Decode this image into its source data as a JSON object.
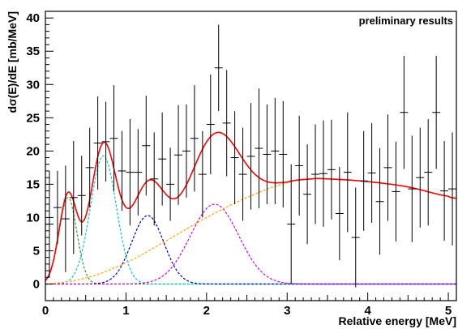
{
  "chart_data": {
    "type": "scatter",
    "title": "",
    "annotation": "preliminary results",
    "xlabel": "Relative energy [MeV]",
    "ylabel": "dσ(E)/dE [mb/MeV]",
    "xlim": [
      0,
      5.1
    ],
    "ylim": [
      -2.5,
      41
    ],
    "xticks": [
      0,
      1,
      2,
      3,
      4,
      5
    ],
    "yticks": [
      0,
      5,
      10,
      15,
      20,
      25,
      30,
      35,
      40
    ],
    "grid": false,
    "legend": "none",
    "points": [
      {
        "x": 0.05,
        "y": 9.0,
        "err": 8.0
      },
      {
        "x": 0.15,
        "y": 11.5,
        "err": 5.5
      },
      {
        "x": 0.25,
        "y": 9.8,
        "err": 8.0
      },
      {
        "x": 0.35,
        "y": 13.0,
        "err": 8.5
      },
      {
        "x": 0.45,
        "y": 13.3,
        "err": 6.0
      },
      {
        "x": 0.55,
        "y": 17.5,
        "err": 6.0
      },
      {
        "x": 0.65,
        "y": 21.2,
        "err": 7.0
      },
      {
        "x": 0.75,
        "y": 21.4,
        "err": 6.0
      },
      {
        "x": 0.85,
        "y": 21.9,
        "err": 8.0
      },
      {
        "x": 0.95,
        "y": 17.0,
        "err": 6.0
      },
      {
        "x": 1.05,
        "y": 16.8,
        "err": 8.0
      },
      {
        "x": 1.15,
        "y": 16.8,
        "err": 6.5
      },
      {
        "x": 1.25,
        "y": 20.8,
        "err": 7.5
      },
      {
        "x": 1.35,
        "y": 15.8,
        "err": 7.0
      },
      {
        "x": 1.45,
        "y": 18.8,
        "err": 7.0
      },
      {
        "x": 1.55,
        "y": 15.0,
        "err": 5.5
      },
      {
        "x": 1.65,
        "y": 19.4,
        "err": 7.5
      },
      {
        "x": 1.75,
        "y": 20.0,
        "err": 7.0
      },
      {
        "x": 1.85,
        "y": 21.9,
        "err": 8.0
      },
      {
        "x": 1.95,
        "y": 16.5,
        "err": 6.5
      },
      {
        "x": 2.05,
        "y": 24.0,
        "err": 7.5
      },
      {
        "x": 2.15,
        "y": 32.5,
        "err": 6.5
      },
      {
        "x": 2.25,
        "y": 24.2,
        "err": 8.0
      },
      {
        "x": 2.35,
        "y": 19.0,
        "err": 7.0
      },
      {
        "x": 2.45,
        "y": 16.5,
        "err": 7.0
      },
      {
        "x": 2.55,
        "y": 19.2,
        "err": 8.0
      },
      {
        "x": 2.65,
        "y": 20.4,
        "err": 9.0
      },
      {
        "x": 2.75,
        "y": 19.5,
        "err": 7.5
      },
      {
        "x": 2.85,
        "y": 20.0,
        "err": 8.0
      },
      {
        "x": 2.95,
        "y": 19.5,
        "err": 8.0
      },
      {
        "x": 3.05,
        "y": 9.0,
        "err": 9.0
      },
      {
        "x": 3.15,
        "y": 17.8,
        "err": 7.5
      },
      {
        "x": 3.25,
        "y": 13.5,
        "err": 7.5
      },
      {
        "x": 3.35,
        "y": 16.5,
        "err": 7.5
      },
      {
        "x": 3.45,
        "y": 16.6,
        "err": 8.0
      },
      {
        "x": 3.55,
        "y": 17.2,
        "err": 7.5
      },
      {
        "x": 3.65,
        "y": 10.6,
        "err": 7.0
      },
      {
        "x": 3.75,
        "y": 16.8,
        "err": 9.0
      },
      {
        "x": 3.85,
        "y": 7.0,
        "err": 7.5
      },
      {
        "x": 3.95,
        "y": 15.5,
        "err": 7.5
      },
      {
        "x": 4.05,
        "y": 16.7,
        "err": 7.5
      },
      {
        "x": 4.15,
        "y": 12.4,
        "err": 8.0
      },
      {
        "x": 4.25,
        "y": 17.5,
        "err": 8.0
      },
      {
        "x": 4.35,
        "y": 13.9,
        "err": 7.5
      },
      {
        "x": 4.45,
        "y": 25.8,
        "err": 8.5
      },
      {
        "x": 4.55,
        "y": 14.3,
        "err": 8.0
      },
      {
        "x": 4.65,
        "y": 16.0,
        "err": 7.5
      },
      {
        "x": 4.75,
        "y": 16.8,
        "err": 8.0
      },
      {
        "x": 4.85,
        "y": 25.8,
        "err": 8.5
      },
      {
        "x": 4.95,
        "y": 14.0,
        "err": 7.5
      },
      {
        "x": 5.05,
        "y": 14.3,
        "err": 8.5
      }
    ],
    "bin_half_width": 0.05,
    "components": [
      {
        "color": "#2ca02c",
        "type": "gauss",
        "amp": 13.0,
        "mu": 0.28,
        "sigma": 0.11
      },
      {
        "color": "#00c8d8",
        "type": "gauss",
        "amp": 19.3,
        "mu": 0.72,
        "sigma": 0.16
      },
      {
        "color": "#0000cc",
        "type": "gauss",
        "amp": 10.3,
        "mu": 1.27,
        "sigma": 0.2
      },
      {
        "color": "#dd00dd",
        "type": "gauss",
        "amp": 12.0,
        "mu": 2.1,
        "sigma": 0.3
      },
      {
        "color": "#ffa500",
        "type": "smooth",
        "x": [
          0,
          0.5,
          1.0,
          1.5,
          2.0,
          2.5,
          3.0,
          3.3,
          3.5,
          4.0,
          4.5,
          5.0,
          5.1
        ],
        "y": [
          0,
          0.9,
          3.2,
          6.5,
          10.0,
          13.0,
          15.2,
          15.8,
          15.8,
          15.4,
          14.6,
          13.2,
          12.9
        ]
      }
    ],
    "total_color": "#ff0000"
  }
}
